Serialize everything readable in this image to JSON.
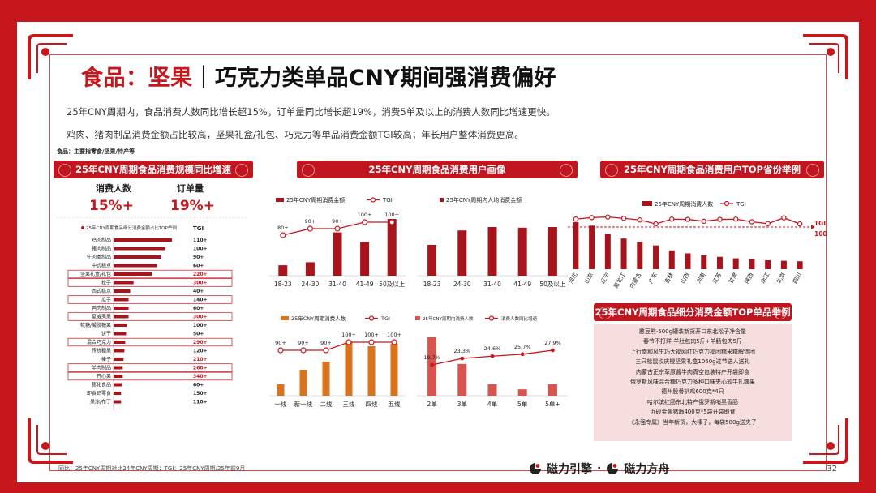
{
  "title": {
    "prefix": "食品：坚果",
    "main": "｜巧克力类单品CNY期间强消费偏好"
  },
  "description": [
    "25年CNY周期内，食品消费人数同比增长超15%，订单量同比增长超19%，消费5单及以上的消费人数同比增速更快。",
    "鸡肉、猪肉制品消费金额占比较高，坚果礼盒/礼包、巧克力等单品消费金额TGI较高；年长用户整体消费更高。"
  ],
  "source_note": "食品：主要指零食/坚果/特产等",
  "footer_note": "同比：25年CNY周期对比24年CNY周期；TGI：25年CNY周期/25年前9月",
  "page_number": "32",
  "brand": {
    "name1": "磁力引擎",
    "separator": "·",
    "name2": "磁力方舟"
  },
  "colors": {
    "primary": "#c8161d",
    "bar_dark": "#a8141c",
    "bar_orange": "#d9731e",
    "highlight": "#c8161d"
  },
  "section_titles": {
    "scale": "25年CNY周期食品消费规模同比增速",
    "portrait": "25年CNY周期食品消费用户画像",
    "province": "25年CNY周期食品消费用户TOP省份举例",
    "toplist": "25年CNY周期食品细分消费金额TOP单品举例"
  },
  "kpis": [
    {
      "label": "消费人数",
      "value": "15%+"
    },
    {
      "label": "订单量",
      "value": "19%+"
    }
  ],
  "toplist": [
    "憨豆熊-500g罐装新货开口东北松子净含量",
    "春节不打烊 羊肚包肉5斤+羊肠包肉5斤",
    "上行南和风生巧大福网红巧克力福团糯米糍解馋团",
    "三只松鼠坎庆橙坚果礼盒1060g过节送人送礼",
    "内蒙古正宗草原酱牛肉真空包装特产开袋即食",
    "俄罗斯风味混合糖巧克力多种口味夹心软牛扎糖果",
    "德州股骨扒鸡600克*4只",
    "哈尔滨红肠东北特产俄罗斯哨黑香肠",
    "沂砂金酱猪蹄400克*5袋开袋即食",
    "《永强专属》当年新货，大榛子，每袋500g送夹子"
  ],
  "chart_data": [
    {
      "id": "category-share",
      "type": "bar",
      "orientation": "horizontal",
      "title": "25年CNY周期食品细分消费金额占比TOP举例",
      "tgi_label": "TGI",
      "categories": [
        "鸡肉制品",
        "猪肉制品",
        "牛肉类制品",
        "中式糕点",
        "坚果礼盒/礼包",
        "松子",
        "西式糕点",
        "瓜子",
        "鸭肉制品",
        "夏威夷果",
        "软糖/凝胶糖果",
        "饼干",
        "混合巧克力",
        "传统糖果",
        "榛子",
        "羊肉制品",
        "开心果",
        "膨化食品",
        "即食虾零食",
        "果冻/布丁"
      ],
      "values": [
        70,
        62,
        57,
        52,
        46,
        24,
        20,
        18,
        18,
        18,
        16,
        15,
        14,
        13,
        12,
        11,
        11,
        10,
        9,
        9
      ],
      "tgi": [
        "110+",
        "100+",
        "90+",
        "60+",
        "220+",
        "300+",
        "40+",
        "140+",
        "60+",
        "300+",
        "100+",
        "50+",
        "290+",
        "120+",
        "210+",
        "260+",
        "340+",
        "60+",
        "150+",
        "110+"
      ],
      "highlighted": [
        "坚果礼盒/礼包",
        "松子",
        "瓜子",
        "夏威夷果",
        "混合巧克力",
        "羊肉制品",
        "开心果"
      ]
    },
    {
      "id": "age-amount",
      "type": "bar",
      "legend": [
        "25年CNY周期消费金额",
        "TGI"
      ],
      "categories": [
        "18-23",
        "24-30",
        "31-40",
        "41-49",
        "50及以上"
      ],
      "values": [
        14,
        18,
        58,
        45,
        76
      ],
      "tgi": [
        80,
        90,
        90,
        100,
        100
      ],
      "tgi_labels": [
        "80+",
        "90+",
        "90+",
        "100+",
        "100+"
      ]
    },
    {
      "id": "age-per-capita",
      "type": "bar",
      "legend": [
        "25年CNY周期内人均消费金额"
      ],
      "categories": [
        "18-23",
        "24-30",
        "31-40",
        "41-49",
        "50及以上"
      ],
      "values": [
        45,
        66,
        71,
        70,
        71
      ]
    },
    {
      "id": "city-consumers",
      "type": "bar",
      "legend": [
        "25年CNY周期消费人数",
        "TGI"
      ],
      "categories": [
        "一线",
        "新一线",
        "二线",
        "三线",
        "四线",
        "五线"
      ],
      "values": [
        14,
        32,
        42,
        68,
        61,
        64
      ],
      "tgi": [
        90,
        90,
        90,
        100,
        100,
        100
      ],
      "tgi_labels": [
        "90+",
        "90+",
        "90+",
        "100+",
        "100+",
        "100+"
      ]
    },
    {
      "id": "order-frequency",
      "type": "bar",
      "legend": [
        "25年CNY周期内消费人数",
        "消费人数同比增速"
      ],
      "categories": [
        "2单",
        "3单",
        "4单",
        "5单",
        "5单+"
      ],
      "values": [
        92,
        50,
        18,
        10,
        18
      ],
      "growth": [
        19.7,
        23.3,
        24.6,
        25.7,
        27.9
      ],
      "growth_labels": [
        "19.7%",
        "23.3%",
        "24.6%",
        "25.7%",
        "27.9%"
      ]
    },
    {
      "id": "province",
      "type": "bar",
      "legend": [
        "25年CNY周期消费人数",
        "TGI"
      ],
      "categories": [
        "河北",
        "山东",
        "辽宁",
        "黑龙江",
        "内蒙古",
        "广东",
        "吉林",
        "山西",
        "河南",
        "江苏",
        "甘肃",
        "陕西",
        "浙江",
        "北京",
        "四川"
      ],
      "values": [
        95,
        88,
        72,
        62,
        55,
        48,
        38,
        32,
        28,
        25,
        22,
        20,
        18,
        17,
        16
      ],
      "tgi": [
        130,
        136,
        138,
        133,
        127,
        112,
        130,
        129,
        122,
        129,
        130,
        120,
        113,
        135,
        112
      ],
      "tgi_reference": {
        "label": "TGI",
        "value": "100"
      }
    }
  ]
}
